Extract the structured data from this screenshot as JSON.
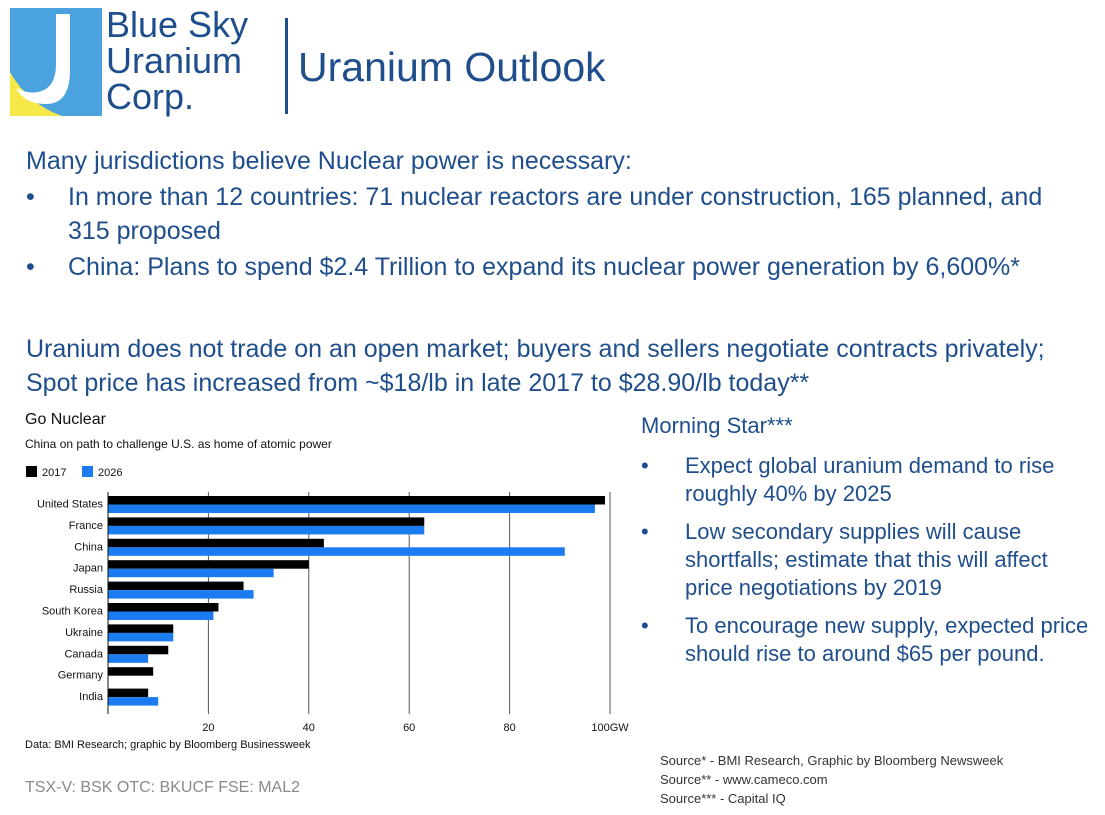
{
  "logo": {
    "line1": "Blue Sky",
    "line2": "Uranium",
    "line3": "Corp."
  },
  "header": {
    "title": "Uranium Outlook"
  },
  "intro": "Many jurisdictions believe Nuclear power is necessary:",
  "bullets": [
    "In more than 12 countries: 71 nuclear reactors are under construction, 165 planned, and 315 proposed",
    "China: Plans to spend $2.4 Trillion to expand its nuclear power generation by 6,600%*"
  ],
  "trade_text": "Uranium does not trade on an open market; buyers and sellers negotiate contracts privately; Spot price has increased from ~$18/lb in late 2017 to $28.90/lb today**",
  "chart_data": {
    "type": "bar",
    "title": "Go Nuclear",
    "subtitle": "China on path to challenge U.S. as home of atomic power",
    "categories": [
      "United States",
      "France",
      "China",
      "Japan",
      "Russia",
      "South Korea",
      "Ukraine",
      "Canada",
      "Germany",
      "India"
    ],
    "series": [
      {
        "name": "2017",
        "color": "#000000",
        "values": [
          99,
          63,
          43,
          40,
          27,
          22,
          13,
          12,
          9,
          8
        ]
      },
      {
        "name": "2026",
        "color": "#1a7cf0",
        "values": [
          97,
          63,
          91,
          33,
          29,
          21,
          13,
          8,
          0,
          10
        ]
      }
    ],
    "xlim": [
      0,
      100
    ],
    "xticks": [
      "20",
      "40",
      "60",
      "80",
      "100GW"
    ],
    "xtick_values": [
      20,
      40,
      60,
      80,
      100
    ],
    "legend_position": "top-left",
    "source": "Data: BMI Research; graphic by Bloomberg Businessweek"
  },
  "morningstar": {
    "heading": "Morning Star***",
    "items": [
      "Expect global uranium demand to rise roughly 40% by 2025",
      "Low secondary supplies will cause shortfalls; estimate that this will affect price negotiations by 2019",
      "To encourage new supply, expected price should rise to around $65 per pound."
    ]
  },
  "ticker": "TSX-V: BSK  OTC: BKUCF  FSE: MAL2",
  "sources": [
    "Source* - BMI Research, Graphic by Bloomberg Newsweek",
    "Source** - www.cameco.com",
    "Source*** - Capital IQ"
  ],
  "bullet_char": "•",
  "colors": {
    "brand": "#1f4e8c",
    "series_2017": "#000000",
    "series_2026": "#1a7cf0"
  }
}
